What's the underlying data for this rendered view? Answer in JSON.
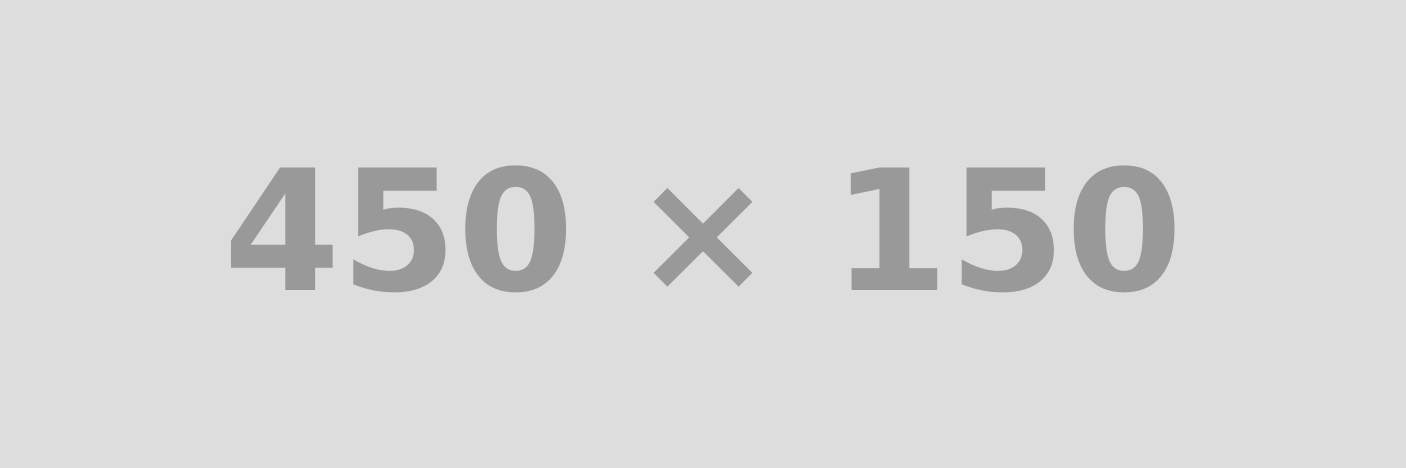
{
  "placeholder": {
    "text": "450 × 150",
    "background_color": "#dddddd",
    "text_color": "#999999"
  }
}
